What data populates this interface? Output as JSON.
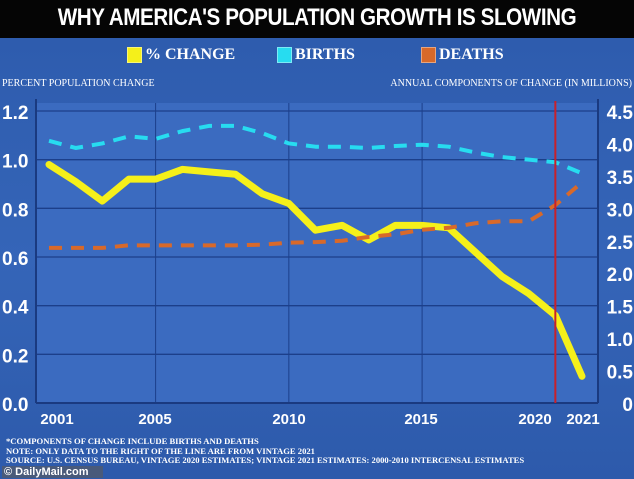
{
  "title": "WHY AMERICA'S POPULATION GROWTH IS SLOWING",
  "legend": [
    {
      "label": "% CHANGE",
      "color": "#f5f01a"
    },
    {
      "label": "BIRTHS",
      "color": "#27dcf0"
    },
    {
      "label": "DEATHS",
      "color": "#d8692a"
    }
  ],
  "chart_data": {
    "type": "line",
    "title": "WHY AMERICA'S POPULATION GROWTH IS SLOWING",
    "ylabel_left": "PERCENT POPULATION CHANGE",
    "ylabel_right": "ANNUAL COMPONENTS OF CHANGE (IN MILLIONS)",
    "x": [
      2001,
      2002,
      2003,
      2004,
      2005,
      2006,
      2007,
      2008,
      2009,
      2010,
      2011,
      2012,
      2013,
      2014,
      2015,
      2016,
      2017,
      2018,
      2019,
      2020,
      2021
    ],
    "x_ticks": [
      "2001",
      "2005",
      "2010",
      "2015",
      "2020",
      "2021"
    ],
    "ylim_left": [
      0,
      1.2
    ],
    "yticks_left": [
      "0.0",
      "0.2",
      "0.4",
      "0.6",
      "0.8",
      "1.0",
      "1.2"
    ],
    "ylim_right": [
      0,
      4.5
    ],
    "yticks_right": [
      "0",
      "0.5",
      "1.0",
      "1.5",
      "2.0",
      "2.5",
      "3.0",
      "3.5",
      "4.0",
      "4.5"
    ],
    "grid": true,
    "vertical_marker": {
      "x": 2020,
      "color": "#c8202a"
    },
    "series": [
      {
        "name": "% CHANGE",
        "axis": "left",
        "style": "solid",
        "color": "#f5f01a",
        "values": [
          0.98,
          0.91,
          0.83,
          0.92,
          0.92,
          0.96,
          0.95,
          0.94,
          0.86,
          0.82,
          0.71,
          0.73,
          0.67,
          0.73,
          0.73,
          0.72,
          0.62,
          0.52,
          0.45,
          0.36,
          0.11
        ]
      },
      {
        "name": "BIRTHS",
        "axis": "right",
        "style": "dashed",
        "color": "#27dcf0",
        "values": [
          4.04,
          3.93,
          4.0,
          4.11,
          4.07,
          4.19,
          4.27,
          4.27,
          4.16,
          4.0,
          3.95,
          3.95,
          3.93,
          3.96,
          3.98,
          3.95,
          3.86,
          3.79,
          3.75,
          3.71,
          3.54
        ]
      },
      {
        "name": "DEATHS",
        "axis": "right",
        "style": "dashed",
        "color": "#d8692a",
        "values": [
          2.39,
          2.39,
          2.39,
          2.43,
          2.43,
          2.43,
          2.43,
          2.43,
          2.44,
          2.47,
          2.48,
          2.5,
          2.56,
          2.6,
          2.67,
          2.7,
          2.77,
          2.8,
          2.8,
          3.05,
          3.4
        ]
      }
    ]
  },
  "notes": [
    "*COMPONENTS OF CHANGE INCLUDE BIRTHS AND DEATHS",
    "NOTE: ONLY DATA TO THE RIGHT OF THE LINE ARE FROM VINTAGE 2021",
    "SOURCE: U.S. CENSUS BUREAU, VINTAGE 2020 ESTIMATES; VINTAGE 2021 ESTIMATES: 2000-2010 INTERCENSAL ESTIMATES"
  ],
  "credit": "© DailyMail.com"
}
